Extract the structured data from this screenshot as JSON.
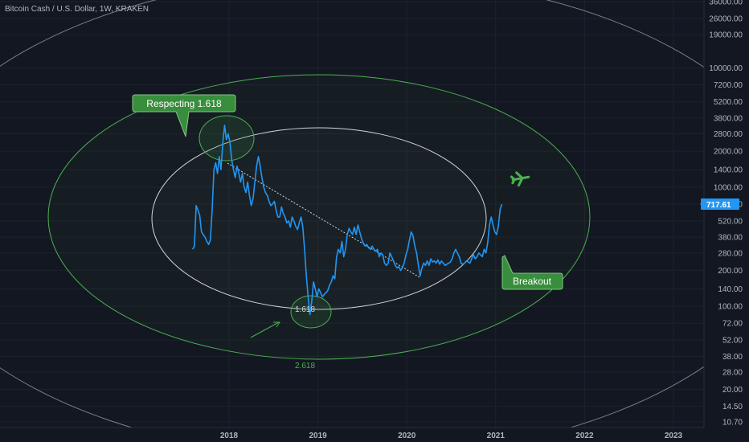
{
  "chart_data": {
    "type": "line",
    "title": "Bitcoin Cash / U.S. Dollar, 1W, KRAKEN",
    "price_axis": {
      "ticks": [
        10.7,
        14.5,
        20.0,
        28.0,
        38.0,
        52.0,
        72.0,
        100.0,
        140.0,
        200.0,
        280.0,
        380.0,
        520.0,
        720.0,
        1000.0,
        1400.0,
        2000.0,
        2800.0,
        3800.0,
        5200.0,
        7200.0,
        10000.0,
        19000.0,
        26000.0,
        36000.0
      ],
      "tick_labels": [
        "10.70",
        "14.50",
        "20.00",
        "28.00",
        "38.00",
        "52.00",
        "72.00",
        "100.00",
        "140.00",
        "200.00",
        "280.00",
        "380.00",
        "520.00",
        "720.00",
        "1000.00",
        "1400.00",
        "2000.00",
        "2800.00",
        "3800.00",
        "5200.00",
        "7200.00",
        "10000.00",
        "19000.00",
        "26000.00",
        "36000.00"
      ],
      "scale": "log"
    },
    "time_axis": {
      "ticks": [
        2018.0,
        2019.0,
        2020.0,
        2021.0,
        2022.0,
        2023.0
      ],
      "tick_labels": [
        "2018",
        "2019",
        "2020",
        "2021",
        "2022",
        "2023"
      ],
      "range": [
        2016.7,
        2023.6
      ]
    },
    "last_price": 717.61,
    "last_price_label": "717.61",
    "series": [
      {
        "color": "#2196f3",
        "points": [
          [
            2017.59,
            300
          ],
          [
            2017.61,
            320
          ],
          [
            2017.63,
            700
          ],
          [
            2017.65,
            640
          ],
          [
            2017.67,
            580
          ],
          [
            2017.69,
            420
          ],
          [
            2017.71,
            400
          ],
          [
            2017.73,
            380
          ],
          [
            2017.75,
            350
          ],
          [
            2017.77,
            330
          ],
          [
            2017.79,
            360
          ],
          [
            2017.81,
            650
          ],
          [
            2017.83,
            1400
          ],
          [
            2017.85,
            1600
          ],
          [
            2017.87,
            1300
          ],
          [
            2017.89,
            1800
          ],
          [
            2017.91,
            1400
          ],
          [
            2017.93,
            2400
          ],
          [
            2017.95,
            3300
          ],
          [
            2017.97,
            2500
          ],
          [
            2017.99,
            2800
          ],
          [
            2018.01,
            2400
          ],
          [
            2018.03,
            1700
          ],
          [
            2018.05,
            1400
          ],
          [
            2018.07,
            1200
          ],
          [
            2018.09,
            1500
          ],
          [
            2018.11,
            1300
          ],
          [
            2018.13,
            1100
          ],
          [
            2018.15,
            1300
          ],
          [
            2018.17,
            1000
          ],
          [
            2018.19,
            900
          ],
          [
            2018.21,
            1100
          ],
          [
            2018.23,
            850
          ],
          [
            2018.25,
            700
          ],
          [
            2018.27,
            800
          ],
          [
            2018.29,
            1100
          ],
          [
            2018.31,
            1500
          ],
          [
            2018.33,
            1800
          ],
          [
            2018.35,
            1500
          ],
          [
            2018.37,
            1200
          ],
          [
            2018.39,
            1000
          ],
          [
            2018.41,
            900
          ],
          [
            2018.43,
            850
          ],
          [
            2018.45,
            760
          ],
          [
            2018.47,
            700
          ],
          [
            2018.49,
            720
          ],
          [
            2018.51,
            760
          ],
          [
            2018.53,
            640
          ],
          [
            2018.55,
            560
          ],
          [
            2018.57,
            560
          ],
          [
            2018.59,
            680
          ],
          [
            2018.61,
            600
          ],
          [
            2018.63,
            560
          ],
          [
            2018.65,
            500
          ],
          [
            2018.67,
            520
          ],
          [
            2018.69,
            460
          ],
          [
            2018.71,
            560
          ],
          [
            2018.73,
            520
          ],
          [
            2018.75,
            470
          ],
          [
            2018.77,
            440
          ],
          [
            2018.79,
            500
          ],
          [
            2018.81,
            560
          ],
          [
            2018.83,
            460
          ],
          [
            2018.85,
            300
          ],
          [
            2018.87,
            180
          ],
          [
            2018.89,
            120
          ],
          [
            2018.91,
            85
          ],
          [
            2018.93,
            110
          ],
          [
            2018.95,
            160
          ],
          [
            2018.97,
            140
          ],
          [
            2018.99,
            120
          ],
          [
            2019.01,
            140
          ],
          [
            2019.03,
            130
          ],
          [
            2019.05,
            120
          ],
          [
            2019.07,
            125
          ],
          [
            2019.09,
            130
          ],
          [
            2019.11,
            135
          ],
          [
            2019.13,
            150
          ],
          [
            2019.15,
            160
          ],
          [
            2019.17,
            180
          ],
          [
            2019.19,
            170
          ],
          [
            2019.21,
            260
          ],
          [
            2019.23,
            300
          ],
          [
            2019.25,
            280
          ],
          [
            2019.27,
            350
          ],
          [
            2019.29,
            260
          ],
          [
            2019.31,
            300
          ],
          [
            2019.33,
            400
          ],
          [
            2019.35,
            450
          ],
          [
            2019.37,
            420
          ],
          [
            2019.39,
            400
          ],
          [
            2019.41,
            460
          ],
          [
            2019.43,
            400
          ],
          [
            2019.45,
            480
          ],
          [
            2019.47,
            420
          ],
          [
            2019.49,
            370
          ],
          [
            2019.51,
            340
          ],
          [
            2019.53,
            320
          ],
          [
            2019.55,
            330
          ],
          [
            2019.57,
            310
          ],
          [
            2019.59,
            300
          ],
          [
            2019.61,
            320
          ],
          [
            2019.63,
            300
          ],
          [
            2019.65,
            290
          ],
          [
            2019.67,
            300
          ],
          [
            2019.69,
            260
          ],
          [
            2019.71,
            280
          ],
          [
            2019.73,
            270
          ],
          [
            2019.75,
            230
          ],
          [
            2019.77,
            220
          ],
          [
            2019.79,
            230
          ],
          [
            2019.81,
            280
          ],
          [
            2019.83,
            260
          ],
          [
            2019.85,
            240
          ],
          [
            2019.87,
            220
          ],
          [
            2019.89,
            210
          ],
          [
            2019.91,
            215
          ],
          [
            2019.93,
            200
          ],
          [
            2019.95,
            210
          ],
          [
            2019.97,
            230
          ],
          [
            2019.99,
            270
          ],
          [
            2020.01,
            300
          ],
          [
            2020.03,
            360
          ],
          [
            2020.05,
            420
          ],
          [
            2020.07,
            390
          ],
          [
            2020.09,
            320
          ],
          [
            2020.11,
            280
          ],
          [
            2020.13,
            220
          ],
          [
            2020.15,
            180
          ],
          [
            2020.17,
            210
          ],
          [
            2020.19,
            230
          ],
          [
            2020.21,
            220
          ],
          [
            2020.23,
            240
          ],
          [
            2020.25,
            220
          ],
          [
            2020.27,
            250
          ],
          [
            2020.29,
            235
          ],
          [
            2020.31,
            240
          ],
          [
            2020.33,
            230
          ],
          [
            2020.35,
            245
          ],
          [
            2020.37,
            225
          ],
          [
            2020.39,
            240
          ],
          [
            2020.41,
            230
          ],
          [
            2020.43,
            220
          ],
          [
            2020.45,
            225
          ],
          [
            2020.47,
            230
          ],
          [
            2020.49,
            235
          ],
          [
            2020.51,
            250
          ],
          [
            2020.53,
            280
          ],
          [
            2020.55,
            300
          ],
          [
            2020.57,
            280
          ],
          [
            2020.59,
            260
          ],
          [
            2020.61,
            230
          ],
          [
            2020.63,
            225
          ],
          [
            2020.65,
            230
          ],
          [
            2020.67,
            240
          ],
          [
            2020.69,
            235
          ],
          [
            2020.71,
            230
          ],
          [
            2020.73,
            250
          ],
          [
            2020.75,
            270
          ],
          [
            2020.77,
            250
          ],
          [
            2020.79,
            260
          ],
          [
            2020.81,
            280
          ],
          [
            2020.83,
            270
          ],
          [
            2020.85,
            260
          ],
          [
            2020.87,
            300
          ],
          [
            2020.89,
            280
          ],
          [
            2020.91,
            340
          ],
          [
            2020.93,
            480
          ],
          [
            2020.95,
            560
          ],
          [
            2020.97,
            480
          ],
          [
            2020.99,
            420
          ],
          [
            2021.01,
            400
          ],
          [
            2021.03,
            470
          ],
          [
            2021.05,
            650
          ],
          [
            2021.07,
            717.61
          ]
        ]
      }
    ],
    "annotations": [
      {
        "type": "text",
        "label": "1.618",
        "at": [
          2018.9,
          85
        ]
      },
      {
        "type": "text",
        "label": "2.618",
        "at": [
          2018.8,
          32
        ]
      },
      {
        "type": "callout",
        "label": "Respecting 1.618"
      },
      {
        "type": "callout",
        "label": "Breakout"
      },
      {
        "type": "icon",
        "name": "airplane-icon"
      }
    ]
  },
  "colors": {
    "background": "#131722",
    "grid": "#1e222d",
    "price_line": "#2196f3",
    "ellipse_inner": "#d1d4dc",
    "ellipse_outer": "#4caf50",
    "callout_fill": "#388e3c",
    "callout_border": "#81c784",
    "axis_text": "#b2b5be"
  }
}
